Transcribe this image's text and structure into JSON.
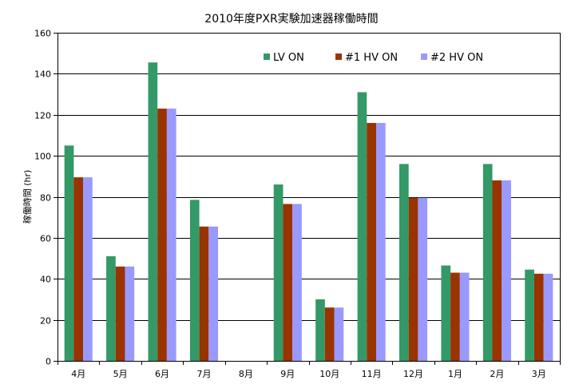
{
  "chart_data": {
    "type": "bar",
    "title": "2010年度PXR実験加速器稼働時間",
    "xlabel": "",
    "ylabel": "稼働時間 (hr)",
    "ylim": [
      0,
      160
    ],
    "yticks": [
      0,
      20,
      40,
      60,
      80,
      100,
      120,
      140,
      160
    ],
    "grid": true,
    "legend_position": "top-right inside plot",
    "categories": [
      "4月",
      "5月",
      "6月",
      "7月",
      "8月",
      "9月",
      "10月",
      "11月",
      "12月",
      "1月",
      "2月",
      "3月"
    ],
    "series": [
      {
        "name": "LV ON",
        "color": "#339966",
        "values": [
          105,
          51,
          145.5,
          78.5,
          0,
          86,
          30,
          131,
          96,
          46.5,
          96,
          44.5
        ]
      },
      {
        "name": "#1  HV ON",
        "color": "#993300",
        "values": [
          89.5,
          46,
          123,
          65.5,
          0,
          76.5,
          26,
          116,
          79.5,
          43,
          88,
          42.5
        ]
      },
      {
        "name": "#2  HV ON",
        "color": "#9999ff",
        "values": [
          89.5,
          46,
          123,
          65.5,
          0,
          76.5,
          26,
          116,
          79.5,
          43,
          88,
          42.5
        ]
      }
    ]
  }
}
